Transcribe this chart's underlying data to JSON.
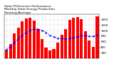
{
  "title": "Solar PV/Inverter Performance Monthly Solar Energy Production Running Average",
  "months": [
    "'y",
    "'y",
    "'y",
    "'y",
    "'y",
    "'y",
    "'y",
    "'y",
    "'y",
    "'y",
    "'y",
    "'y",
    "'y",
    "'y",
    "'y",
    "'y",
    "'y",
    "'y",
    "'y",
    "'y",
    "'y",
    "'y",
    "'y",
    "'y"
  ],
  "bar_values": [
    320,
    520,
    900,
    1100,
    1350,
    1450,
    1480,
    1380,
    1050,
    700,
    380,
    290,
    340,
    580,
    850,
    1050,
    1400,
    1480,
    1500,
    1420,
    980,
    650,
    420,
    1520
  ],
  "running_avg": [
    320,
    420,
    580,
    710,
    838,
    940,
    1014,
    1063,
    1059,
    1013,
    939,
    827,
    771,
    733,
    712,
    700,
    721,
    748,
    782,
    816,
    820,
    808,
    793,
    854
  ],
  "bar_color": "#ff0000",
  "avg_color": "#0000ff",
  "bg_color": "#ffffff",
  "grid_color": "#aaaaaa",
  "ylim": [
    0,
    1600
  ],
  "yticks": [
    200,
    400,
    600,
    800,
    1000,
    1200,
    1400
  ],
  "tick_fontsize": 3.0,
  "title_fontsize": 3.2
}
